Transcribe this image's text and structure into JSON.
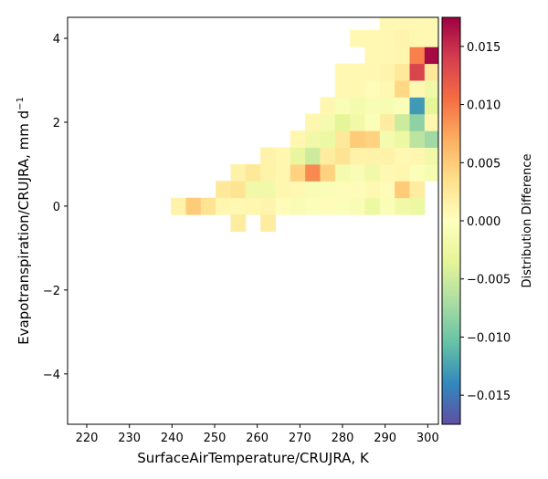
{
  "chart_data": {
    "type": "heatmap",
    "title": "",
    "xlabel": "SurfaceAirTemperature/CRUJRA,  K",
    "ylabel_main": "Evapotranspiration/CRUJRA,  mm d",
    "ylabel_sup": "−1",
    "xlim": [
      215.5,
      302.5
    ],
    "ylim": [
      -5.2,
      4.5
    ],
    "x_ticks": [
      220,
      230,
      240,
      250,
      260,
      270,
      280,
      290,
      300
    ],
    "y_ticks": [
      -4,
      -2,
      0,
      2,
      4
    ],
    "y_tick_labels": [
      "−4",
      "−2",
      "0",
      "2",
      "4"
    ],
    "x_bin_width": 3.5,
    "y_bin_width": 0.4,
    "colorbar": {
      "label": "Distribution Difference",
      "range": [
        -0.0175,
        0.0175
      ],
      "ticks": [
        -0.015,
        -0.01,
        -0.005,
        0,
        0.005,
        0.01,
        0.015
      ],
      "tick_labels": [
        "−0.015",
        "−0.010",
        "−0.005",
        "0.000",
        "0.005",
        "0.010",
        "0.015"
      ],
      "colormap": "Spectral_r"
    },
    "cells": [
      [
        241.5,
        0,
        0.0015
      ],
      [
        245,
        0,
        0.005
      ],
      [
        248.5,
        0,
        0.003
      ],
      [
        252,
        0,
        0.001
      ],
      [
        255.5,
        0,
        0.0008
      ],
      [
        259,
        0,
        0.001
      ],
      [
        262.5,
        0,
        0.0012
      ],
      [
        266,
        0,
        0.0005
      ],
      [
        269.5,
        0,
        -0.001
      ],
      [
        273,
        0,
        -0.0005
      ],
      [
        276.5,
        0,
        0.0005
      ],
      [
        280,
        0,
        -0.0005
      ],
      [
        283.5,
        0,
        -0.001
      ],
      [
        287,
        0,
        -0.0025
      ],
      [
        290.5,
        0,
        -0.0008
      ],
      [
        294,
        0,
        -0.002
      ],
      [
        297.5,
        0,
        -0.0025
      ],
      [
        255.5,
        -0.4,
        0.002
      ],
      [
        262.5,
        -0.4,
        0.002
      ],
      [
        252,
        0.4,
        0.0025
      ],
      [
        255.5,
        0.4,
        0.003
      ],
      [
        259,
        0.4,
        -0.002
      ],
      [
        262.5,
        0.4,
        -0.002
      ],
      [
        266,
        0.4,
        0.001
      ],
      [
        269.5,
        0.4,
        0.0008
      ],
      [
        273,
        0.4,
        -0.001
      ],
      [
        276.5,
        0.4,
        -0.0008
      ],
      [
        280,
        0.4,
        0.0005
      ],
      [
        283.5,
        0.4,
        0.0003
      ],
      [
        287,
        0.4,
        0.0008
      ],
      [
        290.5,
        0.4,
        0.0005
      ],
      [
        294,
        0.4,
        0.005
      ],
      [
        297.5,
        0.4,
        0.002
      ],
      [
        255.5,
        0.8,
        0.0015
      ],
      [
        259,
        0.8,
        0.0025
      ],
      [
        262.5,
        0.8,
        0.0015
      ],
      [
        266,
        0.8,
        0.001
      ],
      [
        269.5,
        0.8,
        0.0045
      ],
      [
        273,
        0.8,
        0.009
      ],
      [
        276.5,
        0.8,
        0.0045
      ],
      [
        280,
        0.8,
        -0.0015
      ],
      [
        283.5,
        0.8,
        -0.001
      ],
      [
        287,
        0.8,
        -0.002
      ],
      [
        290.5,
        0.8,
        0.0008
      ],
      [
        294,
        0.8,
        0.001
      ],
      [
        297.5,
        0.8,
        -0.0005
      ],
      [
        301,
        0.8,
        -0.0012
      ],
      [
        262.5,
        1.2,
        0.0015
      ],
      [
        266,
        1.2,
        0.001
      ],
      [
        269.5,
        1.2,
        -0.003
      ],
      [
        273,
        1.2,
        -0.005
      ],
      [
        276.5,
        1.2,
        0.002
      ],
      [
        280,
        1.2,
        0.003
      ],
      [
        283.5,
        1.2,
        0.0015
      ],
      [
        287,
        1.2,
        0.0015
      ],
      [
        290.5,
        1.2,
        0.0015
      ],
      [
        294,
        1.2,
        0.0008
      ],
      [
        297.5,
        1.2,
        0.001
      ],
      [
        301,
        1.2,
        -0.002
      ],
      [
        269.5,
        1.6,
        0.001
      ],
      [
        273,
        1.6,
        -0.002
      ],
      [
        276.5,
        1.6,
        -0.0025
      ],
      [
        280,
        1.6,
        0.0025
      ],
      [
        283.5,
        1.6,
        0.005
      ],
      [
        287,
        1.6,
        0.0045
      ],
      [
        290.5,
        1.6,
        -0.0015
      ],
      [
        294,
        1.6,
        -0.0025
      ],
      [
        297.5,
        1.6,
        -0.006
      ],
      [
        301,
        1.6,
        -0.0075
      ],
      [
        273,
        2.0,
        0.001
      ],
      [
        276.5,
        2.0,
        -0.0015
      ],
      [
        280,
        2.0,
        -0.0035
      ],
      [
        283.5,
        2.0,
        -0.002
      ],
      [
        287,
        2.0,
        -0.0005
      ],
      [
        290.5,
        2.0,
        0.002
      ],
      [
        294,
        2.0,
        -0.005
      ],
      [
        297.5,
        2.0,
        -0.0085
      ],
      [
        301,
        2.0,
        0.001
      ],
      [
        276.5,
        2.4,
        0.001
      ],
      [
        280,
        2.4,
        -0.0008
      ],
      [
        283.5,
        2.4,
        -0.0015
      ],
      [
        287,
        2.4,
        -0.001
      ],
      [
        290.5,
        2.4,
        -0.0012
      ],
      [
        294,
        2.4,
        -0.0005
      ],
      [
        297.5,
        2.4,
        -0.013
      ],
      [
        301,
        2.4,
        -0.0035
      ],
      [
        280,
        2.8,
        0.0008
      ],
      [
        283.5,
        2.8,
        0.0008
      ],
      [
        287,
        2.8,
        0.0005
      ],
      [
        290.5,
        2.8,
        0.0008
      ],
      [
        294,
        2.8,
        0.004
      ],
      [
        297.5,
        2.8,
        0.0008
      ],
      [
        301,
        2.8,
        -0.002
      ],
      [
        280,
        3.2,
        0.0008
      ],
      [
        283.5,
        3.2,
        0.0008
      ],
      [
        287,
        3.2,
        0.0008
      ],
      [
        290.5,
        3.2,
        0.0012
      ],
      [
        294,
        3.2,
        0.0025
      ],
      [
        297.5,
        3.2,
        0.0135
      ],
      [
        301,
        3.2,
        0.0025
      ],
      [
        287,
        3.6,
        0.0008
      ],
      [
        290.5,
        3.6,
        0.0008
      ],
      [
        294,
        3.6,
        0.001
      ],
      [
        297.5,
        3.6,
        0.0095
      ],
      [
        301,
        3.6,
        0.017
      ],
      [
        283.5,
        4.0,
        0.0008
      ],
      [
        287,
        4.0,
        0.0008
      ],
      [
        290.5,
        4.0,
        0.0008
      ],
      [
        294,
        4.0,
        0.0012
      ],
      [
        297.5,
        4.0,
        0.0008
      ],
      [
        301,
        4.0,
        0.0008
      ],
      [
        290.5,
        4.4,
        0.0008
      ],
      [
        294,
        4.4,
        0.0008
      ],
      [
        297.5,
        4.4,
        0.0008
      ],
      [
        301,
        4.4,
        0.0008
      ]
    ]
  }
}
